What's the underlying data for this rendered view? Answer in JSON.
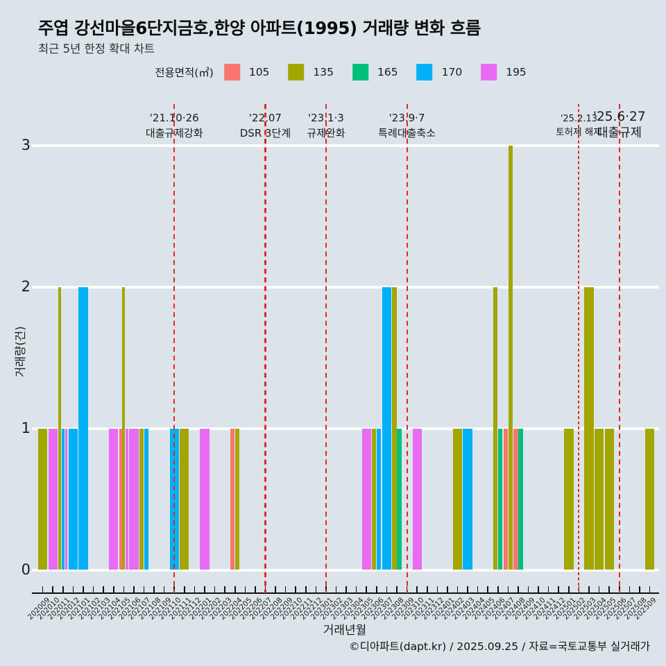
{
  "title": "주엽 강선마을6단지금호,한양 아파트(1995) 거래량 변화 흐름",
  "subtitle": "최근 5년 한정 확대 차트",
  "legend": {
    "label": "전용면적(㎡)",
    "items": [
      {
        "label": "105",
        "color": "#F8766D"
      },
      {
        "label": "135",
        "color": "#A3A500"
      },
      {
        "label": "165",
        "color": "#00BF7D"
      },
      {
        "label": "170",
        "color": "#00B0F6"
      },
      {
        "label": "195",
        "color": "#E76BF3"
      }
    ]
  },
  "footer": "©디아파트(dapt.kr) / 2025.09.25 / 자료=국토교통부 실거래가",
  "colors": {
    "background": "#dbe4e9",
    "gridline": "#ffffff",
    "event_line": "#e8251f",
    "axis": "#101010"
  },
  "chart_data": {
    "type": "bar",
    "title": "주엽 강선마을6단지금호,한양 아파트(1995) 거래량 변화 흐름",
    "xlabel": "거래년월",
    "ylabel": "거래량(건)",
    "ylim": [
      0,
      3
    ],
    "yticks": [
      0,
      1,
      2,
      3
    ],
    "grid": "horizontal-white",
    "legend_position": "top-center",
    "categories": [
      "202009",
      "202010",
      "202011",
      "202012",
      "202101",
      "202102",
      "202103",
      "202104",
      "202105",
      "202106",
      "202107",
      "202108",
      "202109",
      "202110",
      "202111",
      "202112",
      "202201",
      "202202",
      "202203",
      "202204",
      "202205",
      "202206",
      "202207",
      "202208",
      "202209",
      "202210",
      "202211",
      "202212",
      "202301",
      "202302",
      "202303",
      "202304",
      "202305",
      "202306",
      "202307",
      "202308",
      "202309",
      "202310",
      "202311",
      "202312",
      "202401",
      "202402",
      "202403",
      "202404",
      "202405",
      "202406",
      "202407",
      "202408",
      "202409",
      "202410",
      "202411",
      "202412",
      "202501",
      "202502",
      "202503",
      "202504",
      "202505",
      "202506",
      "202507",
      "202508",
      "202509"
    ],
    "series": [
      {
        "name": "105",
        "color": "#F8766D",
        "points": {
          "202105": 1,
          "202204": 1,
          "202407": 1,
          "202408": 1
        }
      },
      {
        "name": "135",
        "color": "#A3A500",
        "points": {
          "202009": 1,
          "202011": 2,
          "202105": 2,
          "202107": 1,
          "202111": 1,
          "202204": 1,
          "202306": 1,
          "202308": 2,
          "202402": 1,
          "202406": 2,
          "202407": 3,
          "202501": 1,
          "202503": 2,
          "202504": 1,
          "202505": 1,
          "202509": 1
        }
      },
      {
        "name": "165",
        "color": "#00BF7D",
        "points": {
          "202308": 1,
          "202406": 1,
          "202408": 1
        }
      },
      {
        "name": "170",
        "color": "#00B0F6",
        "points": {
          "202011": 1,
          "202012": 1,
          "202101": 2,
          "202107": 1,
          "202110": 1,
          "202306": 1,
          "202307": 2,
          "202403": 1
        }
      },
      {
        "name": "195",
        "color": "#E76BF3",
        "points": {
          "202010": 1,
          "202011": 1,
          "202104": 1,
          "202105": 1,
          "202106": 1,
          "202201": 1,
          "202305": 1,
          "202310": 1
        }
      }
    ],
    "events": [
      {
        "date": "'21.10·26",
        "label": "대출규제강화",
        "month": "202110",
        "size": "normal"
      },
      {
        "date": "'22.07",
        "label": "DSR 3단계",
        "month": "202207",
        "size": "normal"
      },
      {
        "date": "'23.1·3",
        "label": "규제완화",
        "month": "202301",
        "size": "normal"
      },
      {
        "date": "'23.9·7",
        "label": "특례대출축소",
        "month": "202309",
        "size": "normal"
      },
      {
        "date": "'25.2.13",
        "label": "토허제 해제",
        "month": "202502",
        "size": "small"
      },
      {
        "date": "'25.6·27",
        "label": "대출규제",
        "month": "202506",
        "size": "large"
      }
    ]
  }
}
